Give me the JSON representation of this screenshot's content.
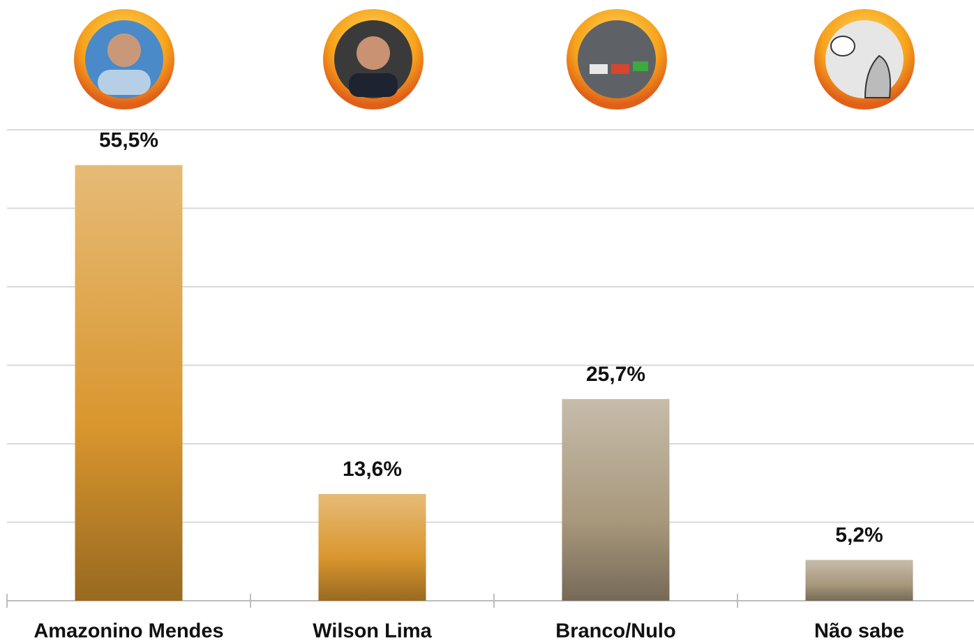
{
  "chart_data": {
    "type": "bar",
    "categories": [
      "Amazonino Mendes",
      "Wilson Lima",
      "Branco/Nulo",
      "Não sabe"
    ],
    "values": [
      55.5,
      13.6,
      25.7,
      5.2
    ],
    "value_labels": [
      "55,5%",
      "13,6%",
      "25,7%",
      "5,2%"
    ],
    "colors": [
      "#d9962e",
      "#d9962e",
      "#a8987c",
      "#a8987c"
    ],
    "ylim": [
      0,
      60
    ],
    "yticks": [
      0,
      10,
      20,
      30,
      40,
      50,
      60
    ],
    "grid": true
  }
}
